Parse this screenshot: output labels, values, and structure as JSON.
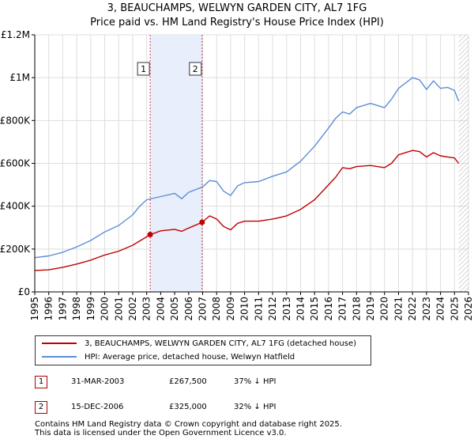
{
  "chart_data": {
    "type": "line",
    "title": "3, BEAUCHAMPS, WELWYN GARDEN CITY, AL7 1FG",
    "subtitle": "Price paid vs. HM Land Registry's House Price Index (HPI)",
    "xlabel": "",
    "ylabel": "",
    "xlim": [
      1995,
      2026
    ],
    "ylim": [
      0,
      1200000
    ],
    "x_ticks": [
      "1995",
      "1996",
      "1997",
      "1998",
      "1999",
      "2000",
      "2001",
      "2002",
      "2003",
      "2004",
      "2005",
      "2006",
      "2007",
      "2008",
      "2009",
      "2010",
      "2011",
      "2012",
      "2013",
      "2014",
      "2015",
      "2016",
      "2017",
      "2018",
      "2019",
      "2020",
      "2021",
      "2022",
      "2023",
      "2024",
      "2025",
      "2026"
    ],
    "y_ticks": [
      {
        "value": 0,
        "label": "£0"
      },
      {
        "value": 200000,
        "label": "£200K"
      },
      {
        "value": 400000,
        "label": "£400K"
      },
      {
        "value": 600000,
        "label": "£600K"
      },
      {
        "value": 800000,
        "label": "£800K"
      },
      {
        "value": 1000000,
        "label": "£1M"
      },
      {
        "value": 1200000,
        "label": "£1.2M"
      }
    ],
    "grid": true,
    "shaded_region": {
      "from": 2003.25,
      "to": 2006.96
    },
    "hatched_from": 2025.3,
    "markers": [
      {
        "label": "1",
        "x": 2003.25,
        "y": 267500
      },
      {
        "label": "2",
        "x": 2006.96,
        "y": 325000
      }
    ],
    "series": [
      {
        "name": "3, BEAUCHAMPS, WELWYN GARDEN CITY, AL7 1FG (detached house)",
        "color": "#c00000",
        "x": [
          1995,
          1996,
          1997,
          1998,
          1999,
          2000,
          2001,
          2002,
          2003.25,
          2004,
          2005,
          2005.5,
          2006,
          2006.96,
          2007.5,
          2008,
          2008.5,
          2009,
          2009.5,
          2010,
          2011,
          2012,
          2013,
          2014,
          2015,
          2016,
          2016.5,
          2017,
          2017.5,
          2018,
          2019,
          2020,
          2020.5,
          2021,
          2022,
          2022.5,
          2023,
          2023.5,
          2024,
          2024.5,
          2025,
          2025.3
        ],
        "y": [
          100000,
          103000,
          115000,
          130000,
          148000,
          172000,
          190000,
          218000,
          267500,
          285000,
          292000,
          283000,
          298000,
          325000,
          355000,
          340000,
          305000,
          290000,
          320000,
          330000,
          330000,
          340000,
          355000,
          385000,
          430000,
          500000,
          535000,
          580000,
          575000,
          585000,
          590000,
          580000,
          600000,
          640000,
          660000,
          655000,
          630000,
          650000,
          635000,
          630000,
          625000,
          600000
        ]
      },
      {
        "name": "HPI: Average price, detached house, Welwyn Hatfield",
        "color": "#5b8ed6",
        "x": [
          1995,
          1996,
          1997,
          1998,
          1999,
          2000,
          2001,
          2002,
          2002.5,
          2003,
          2004,
          2005,
          2005.5,
          2006,
          2007,
          2007.5,
          2008,
          2008.5,
          2009,
          2009.5,
          2010,
          2011,
          2012,
          2013,
          2014,
          2015,
          2016,
          2016.5,
          2017,
          2017.5,
          2018,
          2019,
          2020,
          2020.5,
          2021,
          2022,
          2022.5,
          2023,
          2023.5,
          2024,
          2024.5,
          2025,
          2025.3
        ],
        "y": [
          160000,
          168000,
          185000,
          210000,
          240000,
          280000,
          310000,
          360000,
          400000,
          430000,
          445000,
          460000,
          435000,
          465000,
          490000,
          520000,
          515000,
          470000,
          450000,
          495000,
          510000,
          515000,
          540000,
          560000,
          610000,
          680000,
          765000,
          810000,
          840000,
          830000,
          860000,
          880000,
          860000,
          900000,
          950000,
          1000000,
          990000,
          945000,
          985000,
          950000,
          955000,
          940000,
          890000
        ]
      }
    ]
  },
  "legend": {
    "items": [
      {
        "label": "3, BEAUCHAMPS, WELWYN GARDEN CITY, AL7 1FG (detached house)",
        "color": "#c00000"
      },
      {
        "label": "HPI: Average price, detached house, Welwyn Hatfield",
        "color": "#5b8ed6"
      }
    ]
  },
  "transactions": [
    {
      "num": "1",
      "date": "31-MAR-2003",
      "price": "£267,500",
      "hpi": "37% ↓ HPI"
    },
    {
      "num": "2",
      "date": "15-DEC-2006",
      "price": "£325,000",
      "hpi": "32% ↓ HPI"
    }
  ],
  "footer": {
    "line1": "Contains HM Land Registry data © Crown copyright and database right 2025.",
    "line2": "This data is licensed under the Open Government Licence v3.0."
  }
}
